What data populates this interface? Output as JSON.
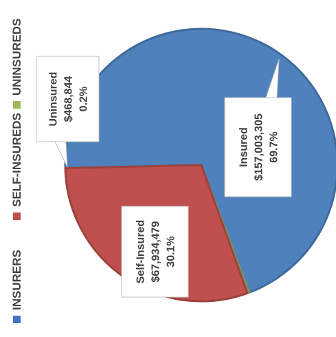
{
  "chart_data": {
    "type": "pie",
    "orientation": "rotated 90° counter-clockwise (text reads bottom-to-top)",
    "legend": {
      "placement": "left",
      "items": [
        {
          "label": "INSURERS",
          "color": "#4472C4"
        },
        {
          "label": "SELF-INSUREDS",
          "color": "#C0504D"
        },
        {
          "label": "UNINSUREDS",
          "color": "#9BBB59"
        }
      ]
    },
    "slices": [
      {
        "name": "Insured",
        "value": 157003305,
        "value_label": "$157,003,305",
        "percent": 69.7,
        "percent_label": "69.7%",
        "color": "#4F81BD"
      },
      {
        "name": "Self-Insured",
        "value": 67934479,
        "value_label": "$67,934,479",
        "percent": 30.1,
        "percent_label": "30.1%",
        "color": "#C0504D"
      },
      {
        "name": "Uninsured",
        "value": 468844,
        "value_label": "$468,844",
        "percent": 0.2,
        "percent_label": "0.2%",
        "color": "#9BBB59"
      }
    ]
  }
}
